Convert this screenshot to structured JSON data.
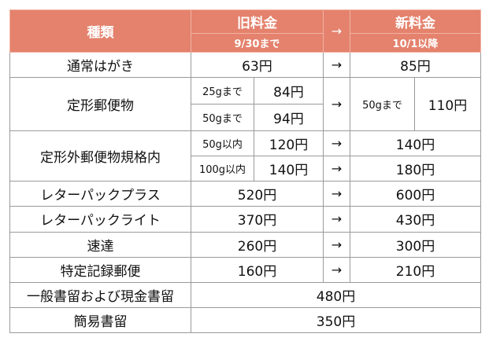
{
  "header": {
    "type_label": "種類",
    "old_label": "旧料金",
    "old_date": "9/30まで",
    "arrow": "→",
    "new_label": "新料金",
    "new_date": "10/1以降"
  },
  "rows": {
    "postcard": {
      "name": "通常はがき",
      "old": "63円",
      "arrow": "→",
      "new": "85円"
    },
    "teikei": {
      "name": "定形郵便物",
      "old_25_label": "25gまで",
      "old_25": "84円",
      "old_50_label": "50gまで",
      "old_50": "94円",
      "arrow": "→",
      "new_50_label": "50gまで",
      "new_50": "110円"
    },
    "teikeigai": {
      "name": "定形外郵便物規格内",
      "w50_label": "50g以内",
      "w50_old": "120円",
      "w50_new": "140円",
      "w100_label": "100g以内",
      "w100_old": "140円",
      "w100_new": "180円",
      "arrow": "→"
    },
    "letterpack_plus": {
      "name": "レターパックプラス",
      "old": "520円",
      "arrow": "→",
      "new": "600円"
    },
    "letterpack_light": {
      "name": "レターパックライト",
      "old": "370円",
      "arrow": "→",
      "new": "430円"
    },
    "express": {
      "name": "速達",
      "old": "260円",
      "arrow": "→",
      "new": "300円"
    },
    "record": {
      "name": "特定記録郵便",
      "old": "160円",
      "arrow": "→",
      "new": "210円"
    },
    "registered": {
      "name": "一般書留および現金書留",
      "price": "480円"
    },
    "simple_registered": {
      "name": "簡易書留",
      "price": "350円"
    }
  }
}
